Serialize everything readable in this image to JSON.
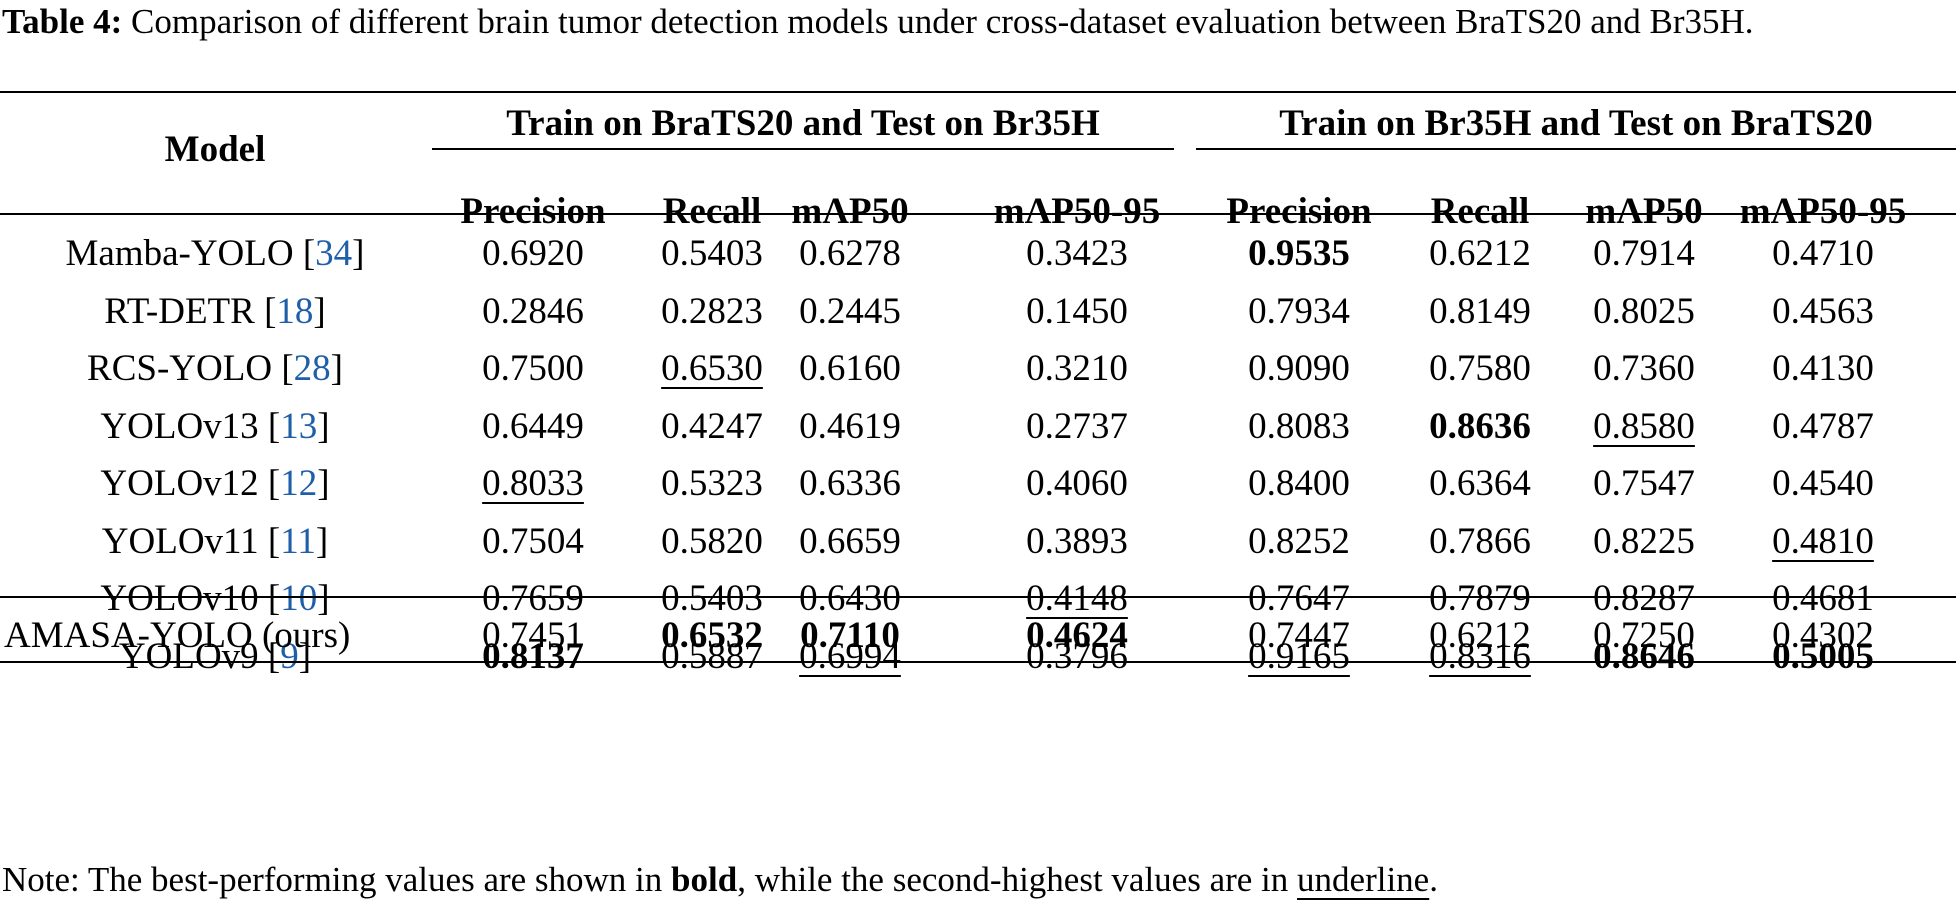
{
  "caption": {
    "label": "Table 4:",
    "text": "Comparison of different brain tumor detection models under cross-dataset evaluation between BraTS20 and Br35H."
  },
  "header": {
    "model": "Model",
    "group1": "Train on BraTS20 and Test on Br35H",
    "group2": "Train on Br35H and Test on BraTS20",
    "metrics": [
      "Precision",
      "Recall",
      "mAP50",
      "mAP50-95",
      "Precision",
      "Recall",
      "mAP50",
      "mAP50-95"
    ]
  },
  "rows": [
    {
      "name": "Mamba-YOLO",
      "ref": "34",
      "values": [
        "0.6920",
        "0.5403",
        "0.6278",
        "0.3423",
        "0.9535",
        "0.6212",
        "0.7914",
        "0.4710"
      ],
      "bold": [
        4
      ],
      "underline": []
    },
    {
      "name": "RT-DETR",
      "ref": "18",
      "values": [
        "0.2846",
        "0.2823",
        "0.2445",
        "0.1450",
        "0.7934",
        "0.8149",
        "0.8025",
        "0.4563"
      ],
      "bold": [],
      "underline": []
    },
    {
      "name": "RCS-YOLO",
      "ref": "28",
      "values": [
        "0.7500",
        "0.6530",
        "0.6160",
        "0.3210",
        "0.9090",
        "0.7580",
        "0.7360",
        "0.4130"
      ],
      "bold": [],
      "underline": [
        1
      ]
    },
    {
      "name": "YOLOv13",
      "ref": "13",
      "values": [
        "0.6449",
        "0.4247",
        "0.4619",
        "0.2737",
        "0.8083",
        "0.8636",
        "0.8580",
        "0.4787"
      ],
      "bold": [
        5
      ],
      "underline": [
        6
      ]
    },
    {
      "name": "YOLOv12",
      "ref": "12",
      "values": [
        "0.8033",
        "0.5323",
        "0.6336",
        "0.4060",
        "0.8400",
        "0.6364",
        "0.7547",
        "0.4540"
      ],
      "bold": [],
      "underline": [
        0
      ]
    },
    {
      "name": "YOLOv11",
      "ref": "11",
      "values": [
        "0.7504",
        "0.5820",
        "0.6659",
        "0.3893",
        "0.8252",
        "0.7866",
        "0.8225",
        "0.4810"
      ],
      "bold": [],
      "underline": [
        7
      ]
    },
    {
      "name": "YOLOv10",
      "ref": "10",
      "values": [
        "0.7659",
        "0.5403",
        "0.6430",
        "0.4148",
        "0.7647",
        "0.7879",
        "0.8287",
        "0.4681"
      ],
      "bold": [],
      "underline": [
        3
      ]
    },
    {
      "name": "YOLOv9",
      "ref": "9",
      "values": [
        "0.8137",
        "0.5887",
        "0.6994",
        "0.3796",
        "0.9165",
        "0.8316",
        "0.8646",
        "0.5005"
      ],
      "bold": [
        0,
        6,
        7
      ],
      "underline": [
        2,
        4,
        5
      ]
    }
  ],
  "ours": {
    "name": "AMASA-YOLO (ours)",
    "values": [
      "0.7451",
      "0.6532",
      "0.7110",
      "0.4624",
      "0.7447",
      "0.6212",
      "0.7250",
      "0.4302"
    ],
    "bold": [
      1,
      2,
      3
    ],
    "underline": []
  },
  "note": {
    "prefix": "Note: The best-performing values are shown in ",
    "bold_word": "bold",
    "middle": ", while the second-highest values are in ",
    "underline_word": "underline",
    "suffix": "."
  }
}
